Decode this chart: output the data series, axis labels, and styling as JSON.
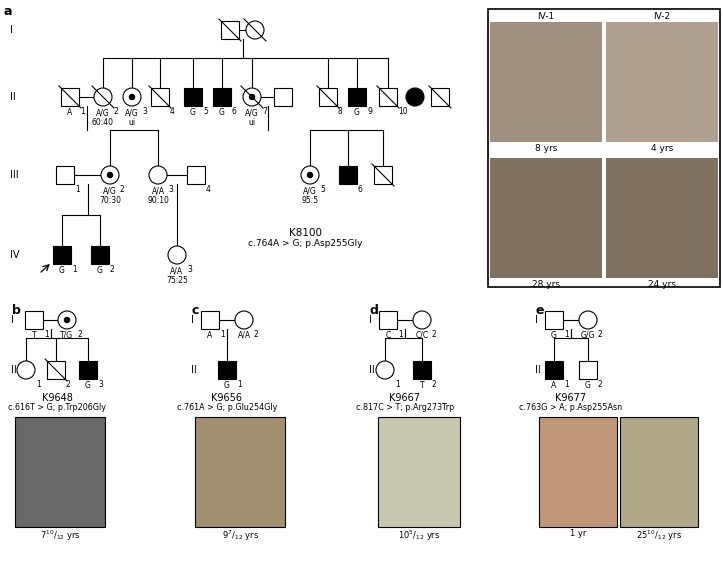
{
  "bg": "white",
  "lw": 0.8,
  "sz": 9,
  "panels": {
    "a": {
      "label": "a",
      "family": "K8100",
      "mutation": "c.764A > G; p.Asp255Gly"
    },
    "b": {
      "label": "b",
      "family": "K9648",
      "mutation": "c.616T > G; p.Trp206Gly",
      "age": "7^{10}/_{12} yrs"
    },
    "c": {
      "label": "c",
      "family": "K9656",
      "mutation": "c.761A > G; p.Glu254Gly",
      "age": "9^{7}/_{12} yrs"
    },
    "d": {
      "label": "d",
      "family": "K9667",
      "mutation": "c.817C > T; p.Arg273Trp",
      "age": "10^{5}/_{12} yrs"
    },
    "e": {
      "label": "e",
      "family": "K9677",
      "mutation": "c.763G > A; p.Asp255Asn",
      "age1": "1 yr",
      "age2": "25^{10}/_{12} yrs"
    }
  },
  "photo_colors": {
    "IV1_top": "#c8a888",
    "IV1_bot": "#9a8070",
    "IV2_top": "#c8b090",
    "IV2_bot": "#9a8878",
    "b_photo": "#606060",
    "c_photo": "#a0906a",
    "d_photo": "#c8c8b8",
    "e_photo1": "#c09878",
    "e_photo2": "#b0a888"
  }
}
